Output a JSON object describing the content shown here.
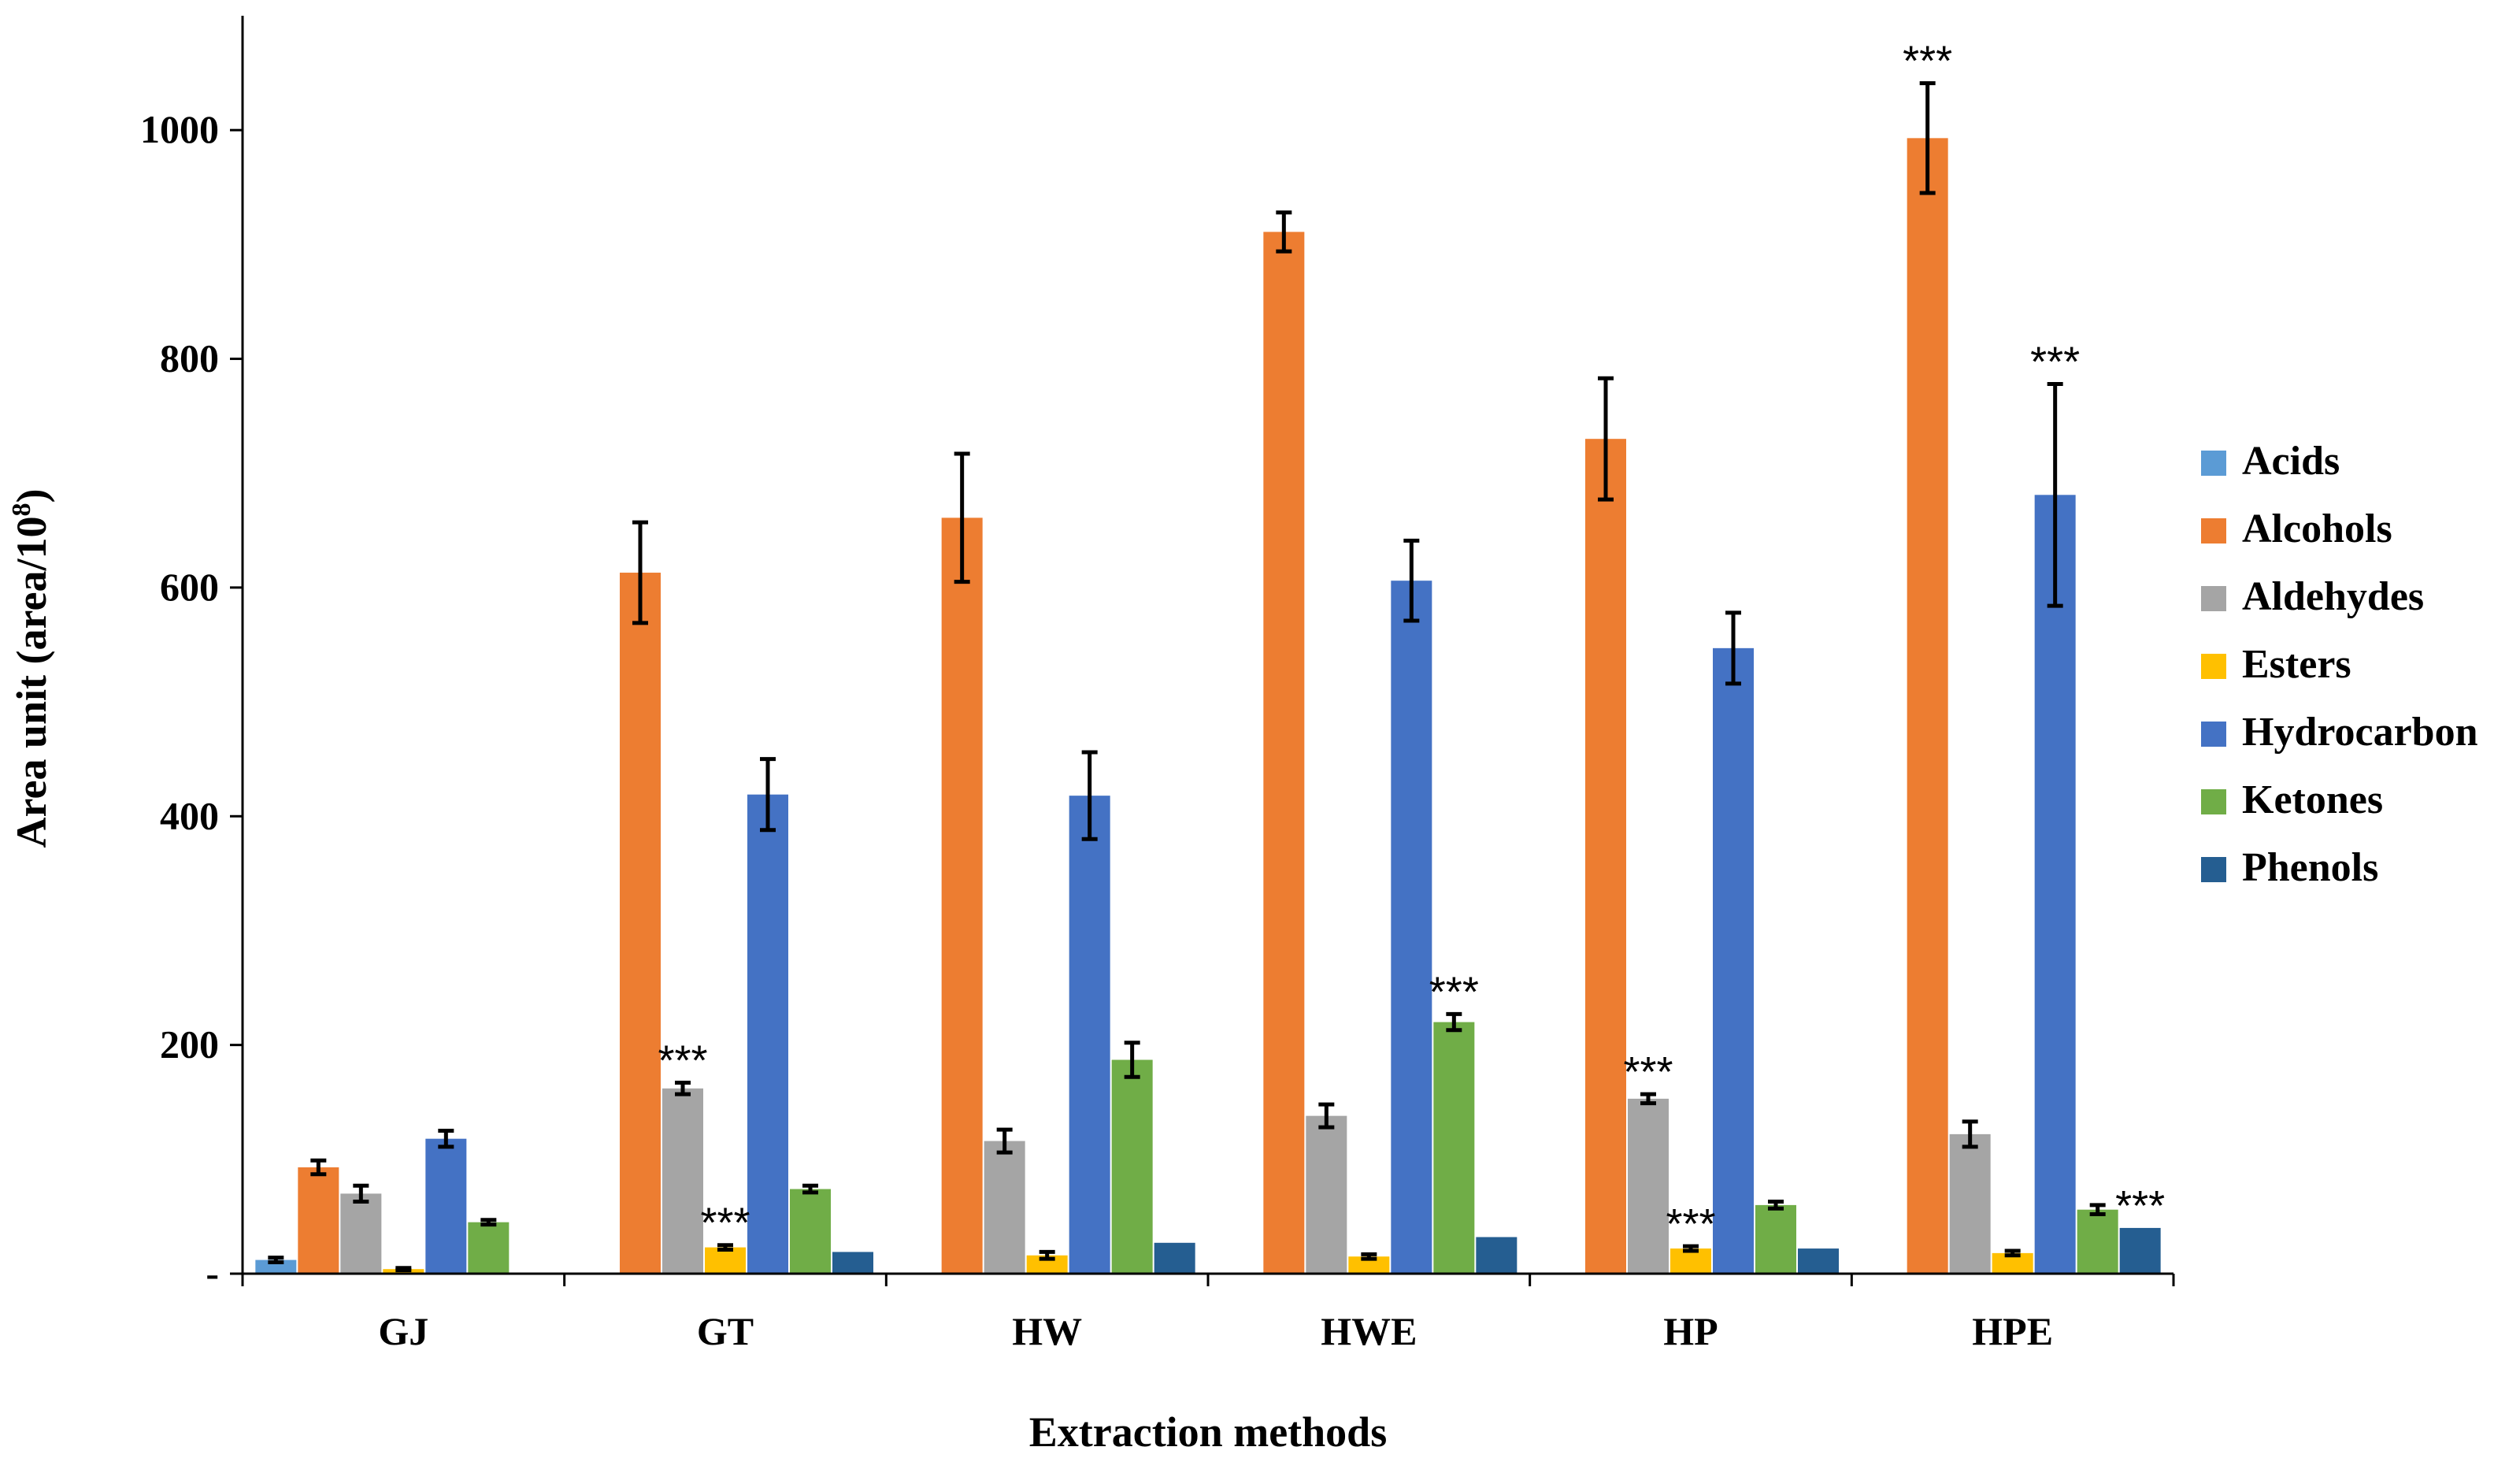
{
  "chart_data": {
    "type": "bar",
    "title": "",
    "xlabel": "Extraction methods",
    "ylabel": "Area unit (area/10",
    "ylabel_superscript": "8",
    "ylabel_close": ")",
    "ylim": [
      0,
      1100
    ],
    "yticks": [
      {
        "value": 0,
        "label": "-"
      },
      {
        "value": 200,
        "label": "200"
      },
      {
        "value": 400,
        "label": "400"
      },
      {
        "value": 600,
        "label": "600"
      },
      {
        "value": 800,
        "label": "800"
      },
      {
        "value": 1000,
        "label": "1000"
      }
    ],
    "grid": false,
    "legend_position": "right",
    "categories": [
      "GJ",
      "GT",
      "HW",
      "HWE",
      "HP",
      "HPE"
    ],
    "series": [
      {
        "name": "Acids",
        "color": "#5B9BD5",
        "values": [
          12,
          0,
          0,
          0,
          0,
          0
        ],
        "errors": [
          2,
          0,
          0,
          0,
          0,
          0
        ]
      },
      {
        "name": "Alcohols",
        "color": "#ED7D31",
        "values": [
          93,
          613,
          661,
          911,
          730,
          993
        ],
        "errors": [
          6,
          44,
          56,
          17,
          53,
          48
        ]
      },
      {
        "name": "Aldehydes",
        "color": "#A5A5A5",
        "values": [
          70,
          162,
          116,
          138,
          153,
          122
        ],
        "errors": [
          7,
          5,
          10,
          10,
          4,
          11
        ]
      },
      {
        "name": "Esters",
        "color": "#FFC000",
        "values": [
          4,
          23,
          16,
          15,
          22,
          18
        ],
        "errors": [
          1,
          2,
          3,
          2,
          2,
          2
        ]
      },
      {
        "name": "Hydrocarbon",
        "color": "#4472C4",
        "values": [
          118,
          419,
          418,
          606,
          547,
          681
        ],
        "errors": [
          7,
          31,
          38,
          35,
          31,
          97
        ]
      },
      {
        "name": "Ketones",
        "color": "#70AD47",
        "values": [
          45,
          74,
          187,
          220,
          60,
          56
        ],
        "errors": [
          2,
          3,
          15,
          7,
          3,
          4
        ]
      },
      {
        "name": "Phenols",
        "color": "#255E91",
        "values": [
          0,
          19,
          27,
          32,
          22,
          40
        ],
        "errors": [
          0,
          0,
          0,
          0,
          0,
          0
        ]
      }
    ],
    "annotations": [
      {
        "text": "***",
        "category": "GT",
        "series": "Aldehydes"
      },
      {
        "text": "***",
        "category": "GT",
        "series": "Esters"
      },
      {
        "text": "***",
        "category": "HWE",
        "series": "Ketones"
      },
      {
        "text": "***",
        "category": "HP",
        "series": "Aldehydes"
      },
      {
        "text": "***",
        "category": "HP",
        "series": "Esters"
      },
      {
        "text": "***",
        "category": "HPE",
        "series": "Alcohols"
      },
      {
        "text": "***",
        "category": "HPE",
        "series": "Hydrocarbon"
      },
      {
        "text": "***",
        "category": "HPE",
        "series": "Phenols"
      }
    ]
  }
}
